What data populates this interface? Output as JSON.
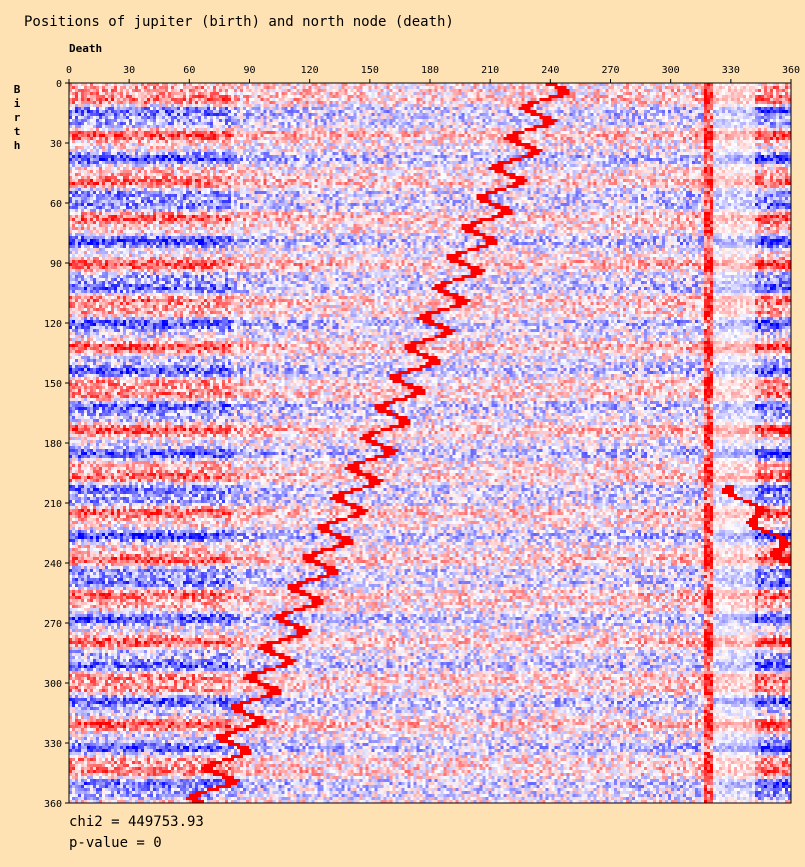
{
  "chart_data": {
    "type": "heatmap",
    "title": "Positions of jupiter (birth) and north node (death)",
    "xlabel": "Death",
    "ylabel": "Birth",
    "xlim": [
      0,
      360
    ],
    "ylim": [
      0,
      360
    ],
    "x_ticks": [
      0,
      30,
      60,
      90,
      120,
      150,
      180,
      210,
      240,
      270,
      300,
      330,
      360
    ],
    "y_ticks": [
      0,
      30,
      60,
      90,
      120,
      150,
      180,
      210,
      240,
      270,
      300,
      330,
      360
    ],
    "colors": {
      "positive": "#ff0000",
      "negative": "#0000ff",
      "neutral": "#ffffff",
      "background": "#ffe2b3"
    },
    "stats": {
      "chi2": "chi2 = 449753.93",
      "p_value": "p-value = 0"
    }
  }
}
